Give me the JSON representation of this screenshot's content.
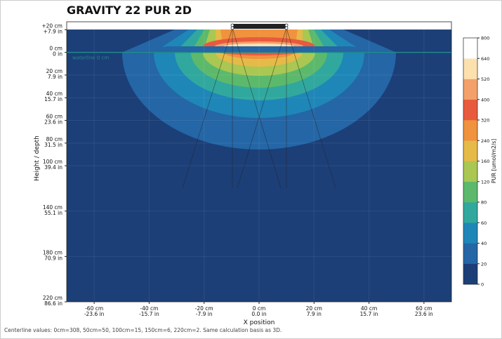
{
  "chart_data": {
    "type": "contour",
    "title": "GRAVITY 22 PUR 2D",
    "xlabel": "X position",
    "ylabel": "Height / depth",
    "xlim": [
      -70,
      70
    ],
    "ylim": [
      -27,
      220
    ],
    "grid": true,
    "xticks": [
      {
        "value": -60,
        "label": [
          "-60 cm",
          "-23.6 in"
        ]
      },
      {
        "value": -40,
        "label": [
          "-40 cm",
          "-15.7 in"
        ]
      },
      {
        "value": -20,
        "label": [
          "-20 cm",
          "-7.9 in"
        ]
      },
      {
        "value": 0,
        "label": [
          "0 cm",
          "0.0 in"
        ]
      },
      {
        "value": 20,
        "label": [
          "20 cm",
          "7.9 in"
        ]
      },
      {
        "value": 40,
        "label": [
          "40 cm",
          "15.7 in"
        ]
      },
      {
        "value": 60,
        "label": [
          "60 cm",
          "23.6 in"
        ]
      }
    ],
    "yticks": [
      {
        "value": -20,
        "label": [
          "+20 cm",
          "+7.9 in"
        ]
      },
      {
        "value": 0,
        "label": [
          "0 cm",
          "0 in"
        ]
      },
      {
        "value": 20,
        "label": [
          "20 cm",
          "7.9 in"
        ]
      },
      {
        "value": 40,
        "label": [
          "40 cm",
          "15.7 in"
        ]
      },
      {
        "value": 60,
        "label": [
          "60 cm",
          "23.6 in"
        ]
      },
      {
        "value": 80,
        "label": [
          "80 cm",
          "31.5 in"
        ]
      },
      {
        "value": 100,
        "label": [
          "100 cm",
          "39.4 in"
        ]
      },
      {
        "value": 140,
        "label": [
          "140 cm",
          "55.1 in"
        ]
      },
      {
        "value": 180,
        "label": [
          "180 cm",
          "70.9 in"
        ]
      },
      {
        "value": 220,
        "label": [
          "220 cm",
          "86.6 in"
        ]
      }
    ],
    "annotation": "waterline 0 cm",
    "colorbar": {
      "label": "PUR [umol/m2/s]",
      "ticks": [
        0,
        20,
        40,
        60,
        80,
        120,
        160,
        240,
        320,
        400,
        520,
        640,
        800
      ],
      "colors": [
        "#1c3f78",
        "#2466a6",
        "#1f86b8",
        "#31a89e",
        "#5cb96c",
        "#a9c752",
        "#e6ba48",
        "#f0923e",
        "#e85a3e",
        "#f3a06a",
        "#fce0ae",
        "#ffffff"
      ]
    },
    "footnote": "Centerline values: 0cm=308, 50cm=50, 100cm=15, 150cm=6, 220cm=2. Same calculation basis as 3D."
  }
}
